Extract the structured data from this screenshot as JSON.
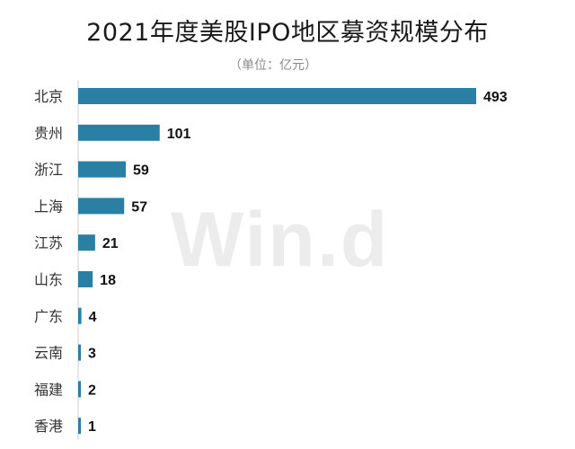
{
  "watermark": "Win.d",
  "chart_data": {
    "type": "bar",
    "orientation": "horizontal",
    "title": "2021年度美股IPO地区募资规模分布",
    "subtitle": "（单位：亿元）",
    "categories": [
      "北京",
      "贵州",
      "浙江",
      "上海",
      "江苏",
      "山东",
      "广东",
      "云南",
      "福建",
      "香港"
    ],
    "values": [
      493,
      101,
      59,
      57,
      21,
      18,
      4,
      3,
      2,
      1
    ],
    "xlim": [
      0,
      493
    ],
    "grid": false,
    "legend": "none",
    "bar_color": "#2a7fa4"
  }
}
